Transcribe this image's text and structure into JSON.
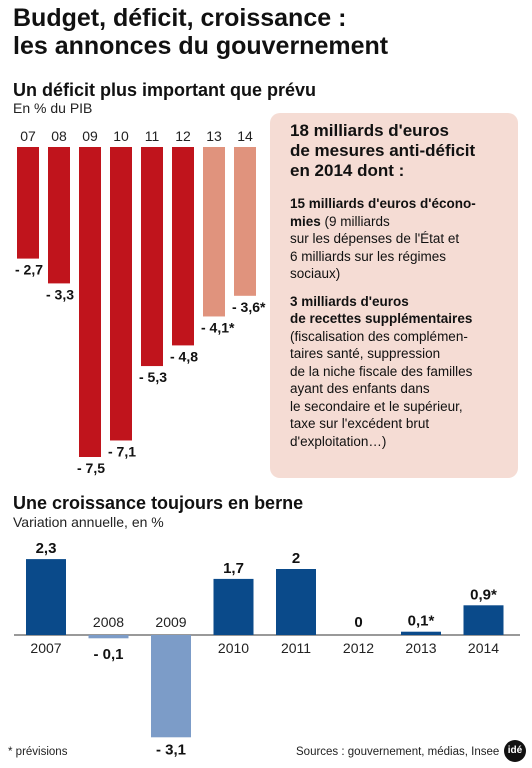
{
  "header": {
    "title_line1": "Budget, déficit, croissance :",
    "title_line2": "les annonces du gouvernement"
  },
  "colors": {
    "deficit_actual": "#c0141c",
    "deficit_forecast": "#e0937d",
    "growth_positive": "#0a4a8a",
    "growth_negative": "#7c9cc8",
    "box_bg": "#f5dcd4"
  },
  "deficit_section": {
    "title": "Un déficit plus important que prévu",
    "unit": "En % du PIB"
  },
  "growth_section": {
    "title": "Une croissance toujours en berne",
    "unit": "Variation annuelle, en %"
  },
  "measures_box": {
    "heading": [
      "18 milliards d'euros",
      "de mesures anti-déficit",
      "en 2014 dont :"
    ],
    "item1_bold": [
      "15 milliards d'euros d'écono-",
      "mies"
    ],
    "item1_text_first": " (9 milliards",
    "item1_text": [
      "sur les dépenses de l'État et",
      "6 milliards sur les régimes",
      "sociaux)"
    ],
    "item2_bold": [
      "3 milliards d'euros",
      "de recettes supplémentaires"
    ],
    "item2_text": [
      "(fiscalisation des complémen-",
      "taires santé, suppression",
      "de la niche fiscale des familles",
      "ayant des enfants dans",
      "le secondaire et le supérieur,",
      "taxe sur l'excédent brut",
      "d'exploitation…)"
    ]
  },
  "chart_data": [
    {
      "type": "bar",
      "categories": [
        "07",
        "08",
        "09",
        "10",
        "11",
        "12",
        "13",
        "14"
      ],
      "values": [
        -2.7,
        -3.3,
        -7.5,
        -7.1,
        -5.3,
        -4.8,
        -4.1,
        -3.6
      ],
      "labels": [
        "- 2,7",
        "- 3,3",
        "- 7,5",
        "- 7,1",
        "- 5,3",
        "- 4,8",
        "- 4,1*",
        "- 3,6*"
      ],
      "forecast": [
        false,
        false,
        false,
        false,
        false,
        false,
        true,
        true
      ],
      "title": "Un déficit plus important que prévu",
      "ylabel": "En % du PIB",
      "ylim": [
        -7.5,
        0
      ]
    },
    {
      "type": "bar",
      "categories": [
        "2007",
        "2008",
        "2009",
        "2010",
        "2011",
        "2012",
        "2013",
        "2014"
      ],
      "values": [
        2.3,
        -0.1,
        -3.1,
        1.7,
        2,
        0,
        0.1,
        0.9
      ],
      "labels": [
        "2,3",
        "- 0,1",
        "- 3,1",
        "1,7",
        "2",
        "0",
        "0,1*",
        "0,9*"
      ],
      "forecast": [
        false,
        false,
        false,
        false,
        false,
        false,
        true,
        true
      ],
      "title": "Une croissance toujours en berne",
      "ylabel": "Variation annuelle, en %",
      "ylim": [
        -3.1,
        2.3
      ]
    }
  ],
  "footer": {
    "note": "* prévisions",
    "sources": "Sources : gouvernement, médias, Insee",
    "logo": "idé"
  }
}
